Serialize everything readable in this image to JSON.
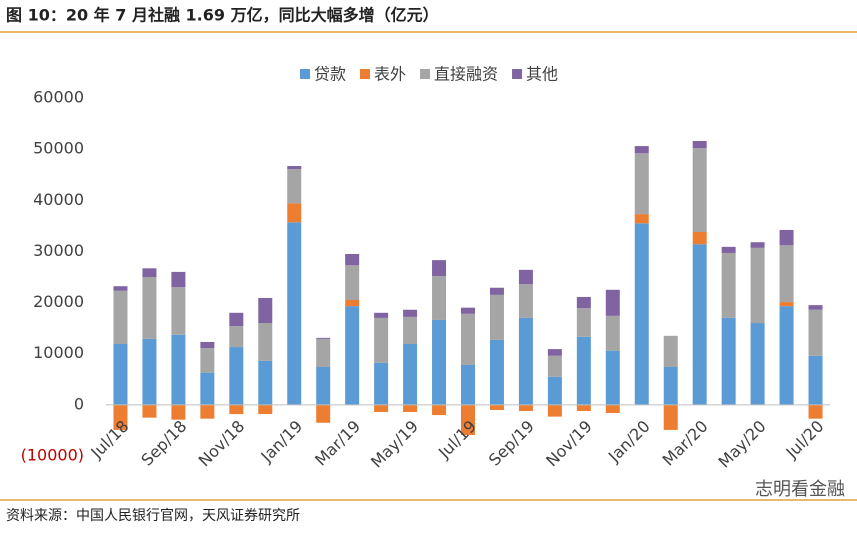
{
  "chart_data": {
    "type": "stacked_bar",
    "title": "图 10：20 年 7 月社融 1.69 万亿，同比大幅多增（亿元）",
    "source": "资料来源：中国人民银行官网，天风证券研究所",
    "categories": [
      "Jul/18",
      null,
      "Sep/18",
      null,
      "Nov/18",
      null,
      "Jan/19",
      null,
      "Mar/19",
      null,
      "May/19",
      null,
      "Jul/19",
      null,
      "Sep/19",
      null,
      "Nov/19",
      null,
      "Jan/20",
      null,
      "Mar/20",
      null,
      "May/20",
      null,
      "Jul/20"
    ],
    "series": [
      {
        "name": "贷款",
        "color": "#5b9bd5",
        "values": [
          11900,
          12900,
          13700,
          6300,
          11300,
          8600,
          35700,
          7400,
          19300,
          8200,
          11900,
          16600,
          7800,
          12700,
          17000,
          5500,
          13300,
          10600,
          35500,
          7400,
          31400,
          17000,
          16000,
          19300,
          9600
        ]
      },
      {
        "name": "表外",
        "color": "#ed7d31",
        "values": [
          -4900,
          -2500,
          -2900,
          -2700,
          -1800,
          -1800,
          3700,
          -3500,
          1200,
          -1400,
          -1400,
          -2000,
          -5900,
          -1000,
          -1200,
          -2300,
          -1200,
          -1600,
          1800,
          -4900,
          2400,
          0,
          0,
          800,
          -2700
        ]
      },
      {
        "name": "直接融资",
        "color": "#a5a5a5",
        "values": [
          10400,
          12100,
          9300,
          4800,
          4100,
          7400,
          6700,
          5500,
          6800,
          8800,
          5300,
          8600,
          10000,
          8800,
          6600,
          4100,
          5600,
          6800,
          11900,
          6100,
          16400,
          12700,
          14700,
          11100,
          9000
        ]
      },
      {
        "name": "其他",
        "color": "#8064a2",
        "values": [
          900,
          1700,
          3000,
          1200,
          2600,
          4900,
          600,
          200,
          2200,
          1000,
          1400,
          3100,
          1200,
          1400,
          2800,
          1300,
          2200,
          5100,
          1400,
          0,
          1400,
          1200,
          1100,
          3000,
          900
        ]
      }
    ],
    "ylim": [
      -10000,
      60000
    ],
    "yticks": [
      {
        "value": -10000,
        "label": "(10000)"
      },
      0,
      10000,
      20000,
      30000,
      40000,
      50000,
      60000
    ],
    "negative_label_color": "#c00000",
    "legend": "top"
  },
  "watermark": "志明看金融"
}
